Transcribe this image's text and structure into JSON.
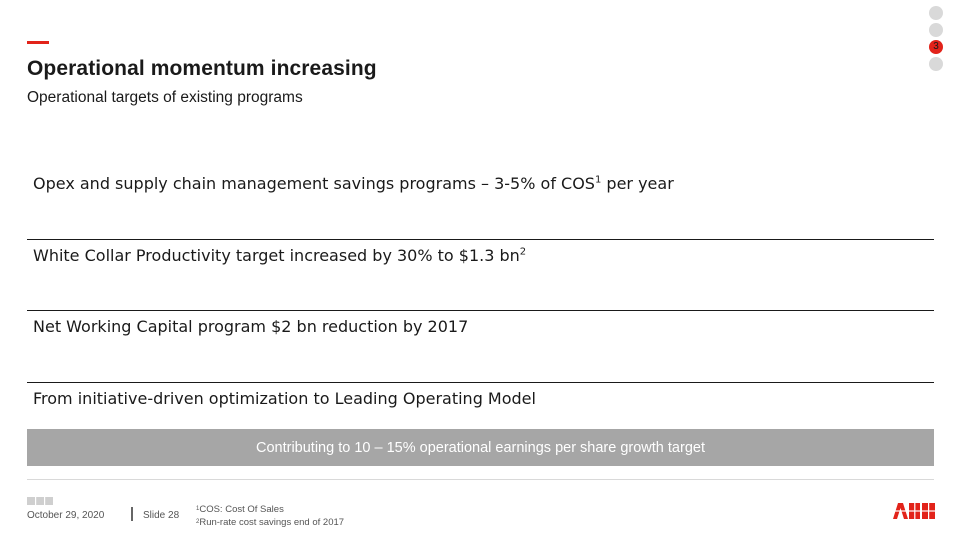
{
  "header": {
    "title": "Operational momentum increasing",
    "subtitle": "Operational targets of existing programs"
  },
  "nav_dots": {
    "active_number": "3"
  },
  "items": [
    {
      "text": "Opex and supply chain management savings programs – 3-5% of COS",
      "sup": "1",
      "suffix": " per year"
    },
    {
      "text": "White Collar Productivity target increased by 30% to $1.3 bn",
      "sup": "2",
      "suffix": ""
    },
    {
      "text": "Net Working Capital program $2 bn reduction by 2017",
      "sup": "",
      "suffix": ""
    },
    {
      "text": "From initiative-driven optimization to Leading Operating Model",
      "sup": "",
      "suffix": ""
    }
  ],
  "banner": {
    "text": "Contributing to 10 – 15% operational earnings per share growth target",
    "color": "#a6a6a6"
  },
  "footer": {
    "date": "October 29, 2020",
    "slide": "Slide 28",
    "footnotes": [
      {
        "sup": "1",
        "text": "COS: Cost Of Sales"
      },
      {
        "sup": "2",
        "text": "Run-rate cost savings end of 2017"
      }
    ]
  },
  "colors": {
    "accent": "#e2231a",
    "text": "#1a1a1a"
  }
}
